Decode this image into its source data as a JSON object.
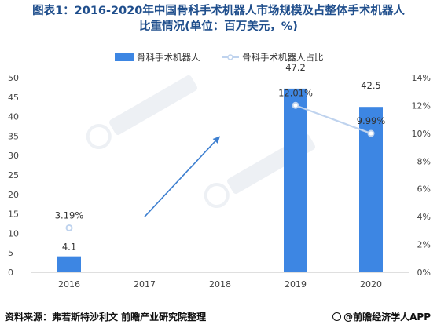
{
  "title_line1": "图表1：2016-2020年中国骨科手术机器人市场规模及占整体手术机器人",
  "title_line2": "比重情况(单位：百万美元，%)",
  "source_text": "资料来源：弗若斯特沙利文 前瞻产业研究院整理",
  "brand_text": "@前瞻经济学人APP",
  "colors": {
    "bar": "#3d86e3",
    "line": "#bfd3ee",
    "arrow": "#3d7fd0",
    "title": "#1f4e8c"
  },
  "chart_data": {
    "type": "bar",
    "categories": [
      "2016",
      "2017",
      "2018",
      "2019",
      "2020"
    ],
    "series": [
      {
        "name": "骨科手术机器人",
        "kind": "bar",
        "axis": "left",
        "values": [
          4.1,
          null,
          null,
          47.2,
          42.5
        ],
        "labels": [
          "4.1",
          "",
          "",
          "47.2",
          "42.5"
        ]
      },
      {
        "name": "骨科手术机器人占比",
        "kind": "line",
        "axis": "right",
        "values": [
          3.19,
          null,
          null,
          12.01,
          9.99
        ],
        "labels": [
          "3.19%",
          "",
          "",
          "12.01%",
          "9.99%"
        ]
      }
    ],
    "ylim_left": [
      0,
      50
    ],
    "yticks_left": [
      "0",
      "5",
      "10",
      "15",
      "20",
      "25",
      "30",
      "35",
      "40",
      "45",
      "50"
    ],
    "ylim_right": [
      0,
      14
    ],
    "yticks_right": [
      "0%",
      "2%",
      "4%",
      "6%",
      "8%",
      "10%",
      "12%",
      "14%"
    ],
    "legend_position": "top",
    "annotation": {
      "type": "arrow",
      "from": [
        "2017",
        4
      ],
      "to": [
        "2018",
        9.8
      ]
    },
    "grid": false
  }
}
